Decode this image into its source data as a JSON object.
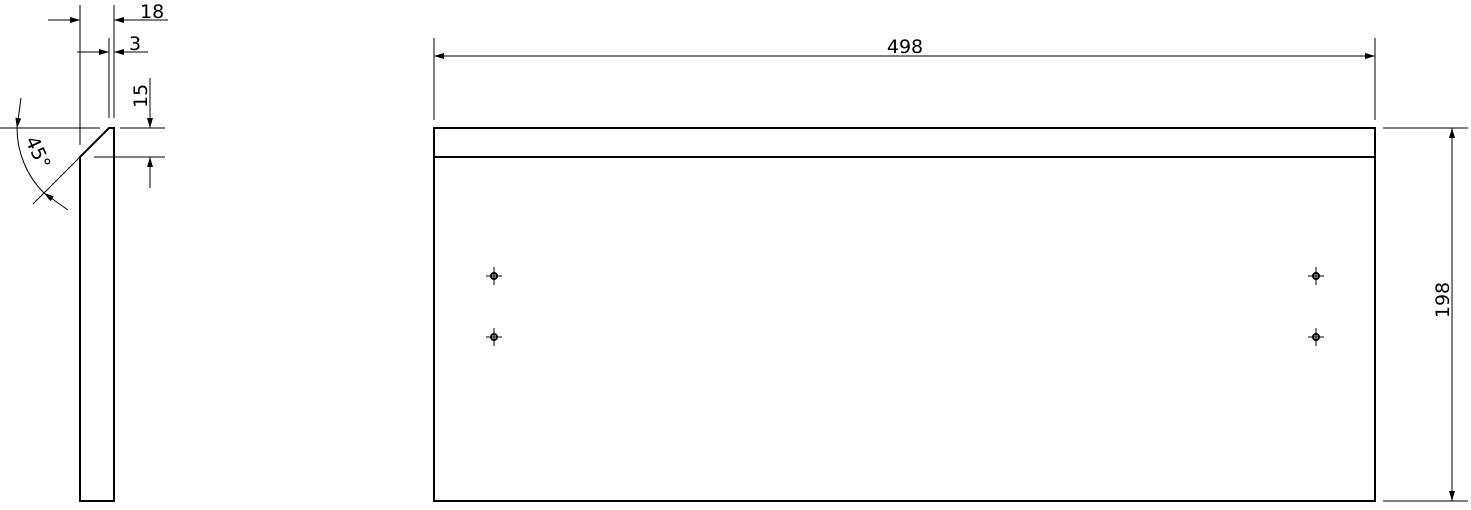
{
  "side_view": {
    "dim_thickness": "18",
    "dim_flat": "3",
    "dim_chamfer_height": "15",
    "dim_angle": "45°"
  },
  "front_view": {
    "dim_width": "498",
    "dim_height": "198",
    "holes": [
      "hole",
      "hole",
      "hole",
      "hole"
    ]
  },
  "colors": {
    "line": "#000000",
    "background": "#ffffff"
  }
}
